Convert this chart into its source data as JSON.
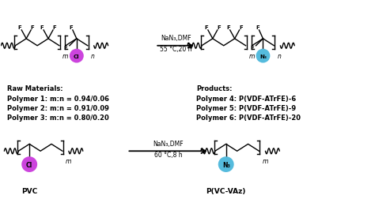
{
  "background_color": "#ffffff",
  "arrow_color": "#000000",
  "cl_circle_color": "#cc44dd",
  "n3_circle_color": "#55bbdd",
  "top_reaction_label_line1": "NaN₃,DMF",
  "top_reaction_label_line2": "55 °C,20 h",
  "bottom_reaction_label_line1": "NaN₃,DMF",
  "bottom_reaction_label_line2": "60 °C,8 h",
  "raw_materials_title": "Raw Materials:",
  "raw_materials_lines": [
    "Polymer 1: m:n = 0.94/0.06",
    "Polymer 2: m:n = 0.91/0.09",
    "Polymer 3: m:n = 0.80/0.20"
  ],
  "products_title": "Products:",
  "products_lines": [
    "Polymer 4: P(VDF-ATrFE)-6",
    "Polymer 5: P(VDF-ATrFE)-9",
    "Polymer 6: P(VDF-ATrFE)-20"
  ],
  "pvc_label": "PVC",
  "pvcvaz_label": "P(VC-VAz)",
  "lw": 1.0
}
